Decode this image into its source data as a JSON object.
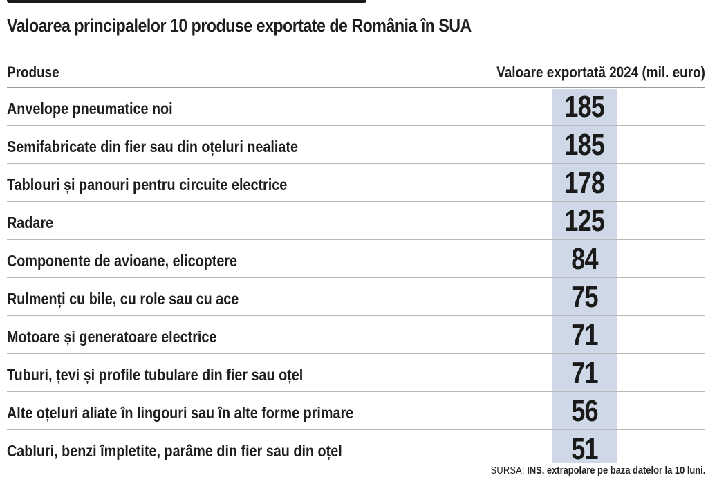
{
  "title": "Valoarea principalelor 10 produse exportate de România în SUA",
  "table": {
    "headers": {
      "product": "Produse",
      "value": "Valoare exportată 2024 (mil. euro)"
    },
    "rows": [
      {
        "product": "Anvelope pneumatice noi",
        "value": "185"
      },
      {
        "product": "Semifabricate din fier sau din oțeluri nealiate",
        "value": "185"
      },
      {
        "product": "Tablouri și panouri pentru circuite electrice",
        "value": "178"
      },
      {
        "product": "Radare",
        "value": "125"
      },
      {
        "product": "Componente de avioane, elicoptere",
        "value": "84"
      },
      {
        "product": "Rulmenți cu bile, cu role sau cu ace",
        "value": "75"
      },
      {
        "product": "Motoare și generatoare electrice",
        "value": "71"
      },
      {
        "product": "Tuburi, țevi și profile tubulare din fier sau oțel",
        "value": "71"
      },
      {
        "product": "Alte oțeluri aliate în lingouri sau în alte forme primare",
        "value": "56"
      },
      {
        "product": "Cabluri, benzi împletite, parâme din fier sau din oțel",
        "value": "51"
      }
    ]
  },
  "source": {
    "label": "SURSA:",
    "text": "INS, extrapolare pe baza datelor la 10 luni."
  },
  "colors": {
    "value_band": "#cfd8e6",
    "text": "#1e1e1e",
    "divider": "#b9b9b9"
  }
}
